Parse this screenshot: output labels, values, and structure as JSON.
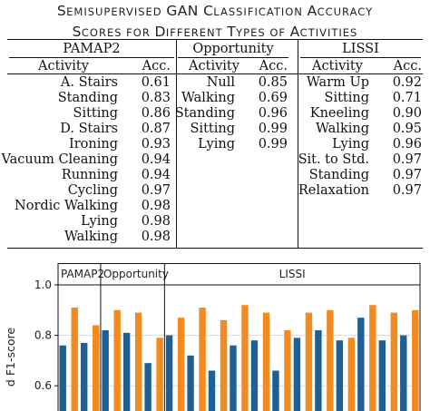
{
  "title": {
    "line1_parts": [
      {
        "text": "S",
        "size": "big"
      },
      {
        "text": "EMISUPERVISED ",
        "size": "sm"
      },
      {
        "text": "GAN C",
        "size": "big"
      },
      {
        "text": "LASSIFICATION ",
        "size": "sm"
      },
      {
        "text": "A",
        "size": "big"
      },
      {
        "text": "CCURACY",
        "size": "sm"
      }
    ],
    "line2_parts": [
      {
        "text": "S",
        "size": "big"
      },
      {
        "text": "CORES FOR ",
        "size": "sm"
      },
      {
        "text": "D",
        "size": "big"
      },
      {
        "text": "IFFERENT ",
        "size": "sm"
      },
      {
        "text": "T",
        "size": "big"
      },
      {
        "text": "YPES OF ",
        "size": "sm"
      },
      {
        "text": "A",
        "size": "big"
      },
      {
        "text": "CTIVITIES",
        "size": "sm"
      }
    ]
  },
  "table": {
    "groups": [
      {
        "name": "PAMAP2",
        "col_activity": "Activity",
        "col_acc": "Acc.",
        "rows": [
          {
            "activity": "A. Stairs",
            "acc": "0.61"
          },
          {
            "activity": "Standing",
            "acc": "0.83"
          },
          {
            "activity": "Sitting",
            "acc": "0.86"
          },
          {
            "activity": "D. Stairs",
            "acc": "0.87"
          },
          {
            "activity": "Ironing",
            "acc": "0.93"
          },
          {
            "activity": "Vacuum Cleaning",
            "acc": "0.94"
          },
          {
            "activity": "Running",
            "acc": "0.94"
          },
          {
            "activity": "Cycling",
            "acc": "0.97"
          },
          {
            "activity": "Nordic Walking",
            "acc": "0.98"
          },
          {
            "activity": "Lying",
            "acc": "0.98"
          },
          {
            "activity": "Walking",
            "acc": "0.98"
          }
        ]
      },
      {
        "name": "Opportunity",
        "col_activity": "Activity",
        "col_acc": "Acc.",
        "rows": [
          {
            "activity": "Null",
            "acc": "0.85"
          },
          {
            "activity": "Walking",
            "acc": "0.69"
          },
          {
            "activity": "Standing",
            "acc": "0.96"
          },
          {
            "activity": "Sitting",
            "acc": "0.99"
          },
          {
            "activity": "Lying",
            "acc": "0.99"
          }
        ]
      },
      {
        "name": "LISSI",
        "col_activity": "Activity",
        "col_acc": "Acc.",
        "rows": [
          {
            "activity": "Warm Up",
            "acc": "0.92"
          },
          {
            "activity": "Sitting",
            "acc": "0.71"
          },
          {
            "activity": "Kneeling",
            "acc": "0.90"
          },
          {
            "activity": "Walking",
            "acc": "0.95"
          },
          {
            "activity": "Lying",
            "acc": "0.96"
          },
          {
            "activity": "Sit. to Std.",
            "acc": "0.97"
          },
          {
            "activity": "Standing",
            "acc": "0.97"
          },
          {
            "activity": "Relaxation",
            "acc": "0.97"
          }
        ]
      }
    ]
  },
  "chart_data": {
    "type": "bar",
    "ylabel": "d F1-score",
    "ylim": [
      0.5,
      1.0
    ],
    "yticks": [
      "1.0",
      "0.8",
      "0.6"
    ],
    "ytick_values": [
      1.0,
      0.8,
      0.6
    ],
    "grid": "horizontal",
    "panels": [
      {
        "label": "PAMAP2",
        "count": 2
      },
      {
        "label": "Opportunity",
        "count": 3
      },
      {
        "label": "LISSI",
        "count": 12
      }
    ],
    "series": [
      {
        "color": "#1f5f93",
        "values": [
          0.76,
          0.77,
          0.82,
          0.81,
          0.69,
          0.8,
          0.72,
          0.66,
          0.76,
          0.78,
          0.66,
          0.79,
          0.82,
          0.78,
          0.87,
          0.78,
          0.8
        ]
      },
      {
        "color": "#f28a20",
        "values": [
          0.91,
          0.84,
          0.9,
          0.89,
          0.79,
          0.87,
          0.91,
          0.86,
          0.92,
          0.89,
          0.82,
          0.89,
          0.9,
          0.79,
          0.92,
          0.89,
          0.9
        ]
      }
    ]
  }
}
